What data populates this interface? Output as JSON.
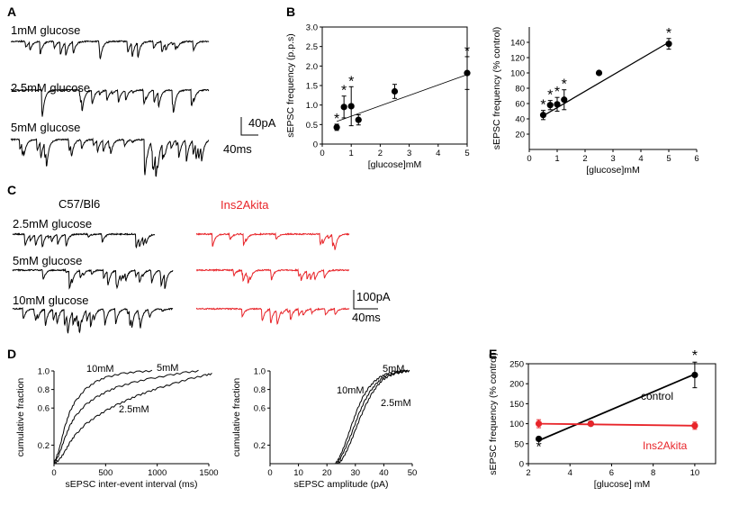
{
  "panels": {
    "A": "A",
    "B": "B",
    "C": "C",
    "D": "D",
    "E": "E"
  },
  "panelA": {
    "traces": [
      "1mM glucose",
      "2.5mM glucose",
      "5mM glucose"
    ],
    "scale": {
      "current": "40pA",
      "time": "40ms"
    }
  },
  "panelC": {
    "group_left": "C57/Bl6",
    "group_right": "Ins2Akita",
    "conditions": [
      "2.5mM glucose",
      "5mM glucose",
      "10mM glucose"
    ],
    "scale": {
      "current": "100pA",
      "time": "40ms"
    }
  },
  "colors": {
    "wildtype": "#000000",
    "akita": "#e8252a"
  },
  "chart_data": [
    {
      "id": "B-left",
      "type": "scatter",
      "xlabel": "[glucose]mM",
      "ylabel": "sEPSC frequency (p.p.s)",
      "xlim": [
        0,
        5
      ],
      "ylim": [
        0,
        3
      ],
      "xticks": [
        "0",
        "1",
        "2",
        "3",
        "4",
        "5"
      ],
      "yticks": [
        "0",
        "0.5",
        "1.0",
        "1.5",
        "2.0",
        "2.5",
        "3.0"
      ],
      "series": [
        {
          "name": "frequency",
          "x": [
            0.5,
            0.75,
            1.0,
            1.25,
            2.5,
            5.0
          ],
          "y": [
            0.43,
            0.95,
            0.97,
            0.62,
            1.35,
            1.82
          ],
          "err": [
            0.08,
            0.28,
            0.5,
            0.13,
            0.18,
            0.42
          ]
        }
      ],
      "fit": {
        "x": [
          0.5,
          5.0
        ],
        "y": [
          0.58,
          1.78
        ]
      },
      "significant_x": [
        0.5,
        0.75,
        1.0,
        5.0
      ],
      "annotation": "*"
    },
    {
      "id": "B-right",
      "type": "scatter",
      "xlabel": "[glucose]mM",
      "ylabel": "sEPSC frequency (% control)",
      "xlim": [
        0,
        6
      ],
      "ylim": [
        0,
        160
      ],
      "xticks": [
        "0",
        "1",
        "2",
        "3",
        "4",
        "5",
        "6"
      ],
      "yticks": [
        "20",
        "40",
        "60",
        "80",
        "100",
        "120",
        "140"
      ],
      "series": [
        {
          "name": "frequency",
          "x": [
            0.5,
            0.75,
            1.0,
            1.25,
            2.5,
            5.0
          ],
          "y": [
            45,
            58,
            59,
            65,
            100,
            138
          ],
          "err": [
            6,
            6,
            9,
            13,
            0,
            7
          ]
        }
      ],
      "fit": {
        "x": [
          0.5,
          5.0
        ],
        "y": [
          44,
          140
        ]
      },
      "significant_x": [
        0.5,
        0.75,
        1.0,
        1.25,
        5.0
      ],
      "annotation": "*"
    },
    {
      "id": "D-left",
      "type": "line",
      "xlabel": "sEPSC inter-event interval (ms)",
      "ylabel": "cumulative fraction",
      "xlim": [
        0,
        1500
      ],
      "ylim": [
        0,
        1.0
      ],
      "xticks": [
        "0",
        "500",
        "1000",
        "1500"
      ],
      "yticks": [
        "0.2",
        "0.6",
        "0.8",
        "1.0"
      ],
      "series": [
        {
          "name": "10mM",
          "x": [
            0,
            50,
            100,
            150,
            200,
            300,
            400,
            500,
            650,
            800,
            950
          ],
          "y": [
            0,
            0.15,
            0.38,
            0.55,
            0.66,
            0.8,
            0.88,
            0.93,
            0.97,
            0.99,
            1.0
          ]
        },
        {
          "name": "5mM",
          "x": [
            0,
            50,
            100,
            150,
            200,
            300,
            400,
            500,
            600,
            750,
            900,
            1100,
            1250,
            1400
          ],
          "y": [
            0,
            0.1,
            0.26,
            0.4,
            0.5,
            0.63,
            0.71,
            0.77,
            0.82,
            0.87,
            0.91,
            0.95,
            0.98,
            1.0
          ]
        },
        {
          "name": "2.5mM",
          "x": [
            0,
            50,
            100,
            150,
            200,
            300,
            400,
            500,
            600,
            700,
            800,
            900,
            1000,
            1150,
            1300,
            1450,
            1530
          ],
          "y": [
            0,
            0.04,
            0.12,
            0.22,
            0.3,
            0.42,
            0.5,
            0.57,
            0.63,
            0.68,
            0.73,
            0.77,
            0.81,
            0.86,
            0.91,
            0.95,
            0.97
          ]
        }
      ]
    },
    {
      "id": "D-right",
      "type": "line",
      "xlabel": "sEPSC amplitude (pA)",
      "ylabel": "cumulative fraction",
      "xlim": [
        0,
        50
      ],
      "ylim": [
        0,
        1.0
      ],
      "xticks": [
        "0",
        "10",
        "20",
        "30",
        "40",
        "50"
      ],
      "yticks": [
        "0.2",
        "0.6",
        "0.8",
        "1.0"
      ],
      "series": [
        {
          "name": "5mM",
          "x": [
            23.5,
            25,
            27,
            29,
            31,
            33,
            35,
            37,
            39,
            41,
            44,
            47,
            49
          ],
          "y": [
            0,
            0.07,
            0.2,
            0.35,
            0.52,
            0.66,
            0.77,
            0.85,
            0.91,
            0.95,
            0.98,
            1.0,
            1.0
          ]
        },
        {
          "name": "10mM",
          "x": [
            23,
            24.5,
            26.5,
            28.5,
            30.5,
            32.5,
            34.5,
            36.5,
            38.5,
            40.5,
            43,
            46,
            48
          ],
          "y": [
            0,
            0.07,
            0.22,
            0.4,
            0.57,
            0.71,
            0.81,
            0.88,
            0.93,
            0.96,
            0.99,
            1.0,
            1.0
          ]
        },
        {
          "name": "2.5mM",
          "x": [
            24,
            25.5,
            27.5,
            29.5,
            31.5,
            33.5,
            35.5,
            37.5,
            39.5,
            41.5,
            44,
            47,
            49
          ],
          "y": [
            0,
            0.05,
            0.17,
            0.32,
            0.48,
            0.62,
            0.74,
            0.83,
            0.9,
            0.94,
            0.97,
            0.99,
            1.0
          ]
        }
      ]
    },
    {
      "id": "E",
      "type": "scatter",
      "xlabel": "[glucose] mM",
      "ylabel": "sEPSC frequency (% control)",
      "xlim": [
        2,
        11
      ],
      "ylim": [
        0,
        250
      ],
      "xticks": [
        "2",
        "4",
        "6",
        "8",
        "10"
      ],
      "yticks": [
        "0",
        "50",
        "100",
        "150",
        "200",
        "250"
      ],
      "series": [
        {
          "name": "control",
          "x": [
            2.5,
            5,
            10
          ],
          "y": [
            62,
            100,
            222
          ],
          "err": [
            0,
            0,
            32
          ]
        },
        {
          "name": "Ins2Akita",
          "x": [
            2.5,
            5,
            10
          ],
          "y": [
            100,
            100,
            95
          ],
          "err": [
            10,
            0,
            9
          ]
        }
      ],
      "fit": [
        {
          "name": "control",
          "x": [
            2.5,
            10
          ],
          "y": [
            58,
            224
          ]
        },
        {
          "name": "Ins2Akita",
          "x": [
            2.5,
            10
          ],
          "y": [
            100,
            95
          ]
        }
      ],
      "significant": [
        {
          "series": "control",
          "x": 2.5
        },
        {
          "series": "control",
          "x": 10
        }
      ],
      "annotation": "*"
    }
  ]
}
